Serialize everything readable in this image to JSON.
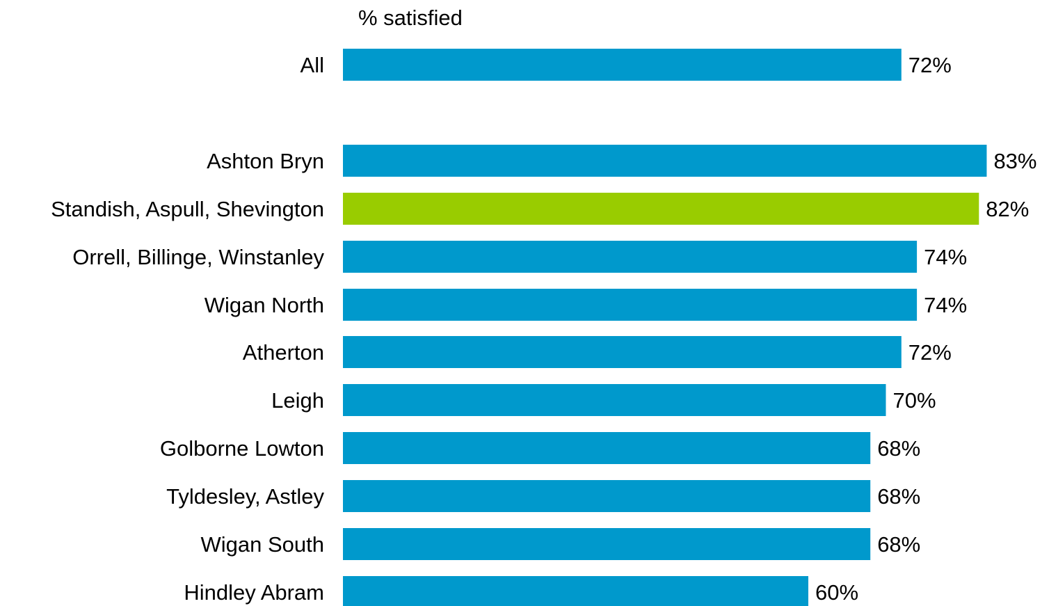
{
  "colors": {
    "default_bar": "#0099CC",
    "highlight_bar": "#99CC00",
    "text": "#000000",
    "background": "#FFFFFF"
  },
  "chart_data": {
    "type": "bar",
    "orientation": "horizontal",
    "title": "% satisfied",
    "xlabel": "",
    "ylabel": "",
    "xlim": [
      0,
      100
    ],
    "grid": false,
    "legend": "none",
    "categories": [
      "All",
      "Ashton Bryn",
      "Standish, Aspull, Shevington",
      "Orrell, Billinge, Winstanley",
      "Wigan North",
      "Atherton",
      "Leigh",
      "Golborne Lowton",
      "Tyldesley, Astley",
      "Wigan South",
      "Hindley Abram"
    ],
    "values": [
      72,
      83,
      82,
      74,
      74,
      72,
      70,
      68,
      68,
      68,
      60
    ],
    "value_labels": [
      "72%",
      "83%",
      "82%",
      "74%",
      "74%",
      "72%",
      "70%",
      "68%",
      "68%",
      "68%",
      "60%"
    ],
    "highlighted": [
      "Standish, Aspull, Shevington"
    ]
  }
}
